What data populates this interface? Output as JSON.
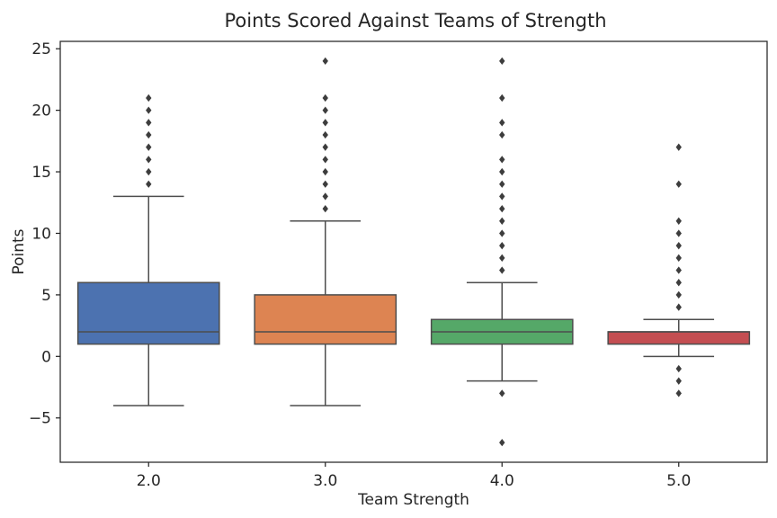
{
  "chart_data": {
    "type": "box",
    "title": "Points Scored Against Teams of Strength",
    "xlabel": "Team Strength",
    "ylabel": "Points",
    "ylim": [
      -8.6,
      25.6
    ],
    "yticks": [
      -5,
      0,
      5,
      10,
      15,
      20,
      25
    ],
    "ytick_labels": [
      "−5",
      "0",
      "5",
      "10",
      "15",
      "20",
      "25"
    ],
    "grid": false,
    "categories": [
      "2.0",
      "3.0",
      "4.0",
      "5.0"
    ],
    "boxes": [
      {
        "category": "2.0",
        "color": "#4c72b0",
        "q1": 1,
        "median": 2,
        "q3": 6,
        "whisker_low": -4,
        "whisker_high": 13,
        "outliers": [
          14,
          15,
          16,
          17,
          18,
          19,
          20,
          21
        ]
      },
      {
        "category": "3.0",
        "color": "#dd8452",
        "q1": 1,
        "median": 2,
        "q3": 5,
        "whisker_low": -4,
        "whisker_high": 11,
        "outliers": [
          12,
          13,
          14,
          15,
          16,
          17,
          18,
          19,
          20,
          21,
          24
        ]
      },
      {
        "category": "4.0",
        "color": "#55a868",
        "q1": 1,
        "median": 2,
        "q3": 3,
        "whisker_low": -2,
        "whisker_high": 6,
        "outliers": [
          -7,
          -3,
          7,
          8,
          9,
          10,
          11,
          12,
          13,
          14,
          15,
          16,
          18,
          19,
          21,
          24
        ]
      },
      {
        "category": "5.0",
        "color": "#c44e52",
        "q1": 1,
        "median": 2,
        "q3": 2,
        "whisker_low": 0,
        "whisker_high": 3,
        "outliers": [
          -3,
          -2,
          -1,
          4,
          5,
          6,
          7,
          8,
          9,
          10,
          11,
          14,
          17
        ]
      }
    ]
  }
}
